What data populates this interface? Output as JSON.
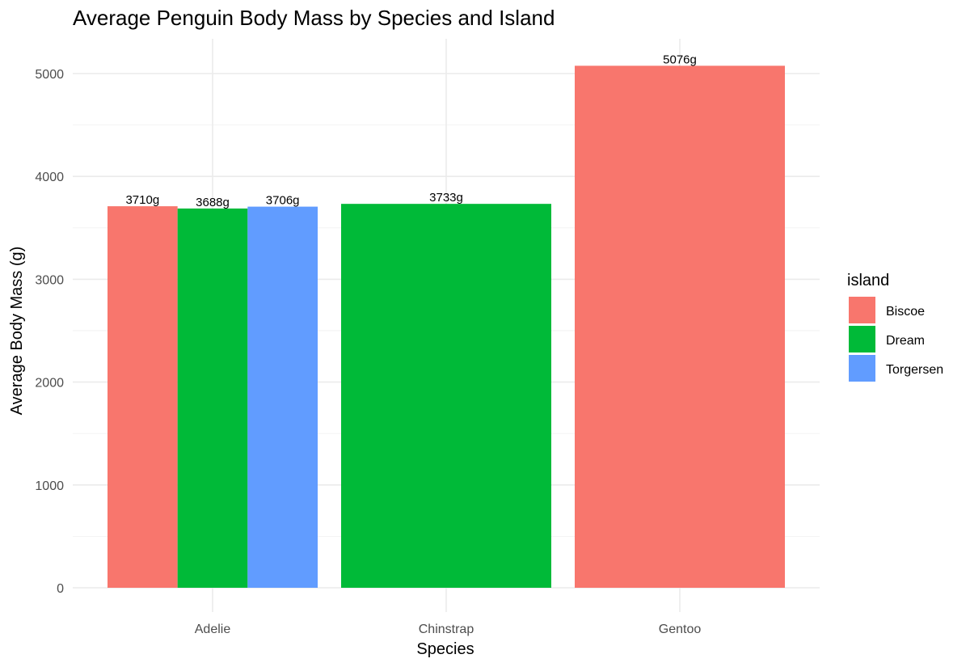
{
  "chart_data": {
    "type": "bar",
    "title": "Average Penguin Body Mass by Species and Island",
    "xlabel": "Species",
    "ylabel": "Average Body Mass (g)",
    "categories": [
      "Adelie",
      "Chinstrap",
      "Gentoo"
    ],
    "ylim": [
      0,
      5200
    ],
    "yticks": [
      0,
      1000,
      2000,
      3000,
      4000,
      5000
    ],
    "ytick_labels": [
      "0",
      "1000",
      "2000",
      "3000",
      "4000",
      "5000"
    ],
    "grid": true,
    "legend": {
      "title": "island",
      "placement": "right",
      "entries": [
        {
          "label": "Biscoe",
          "color": "#F8766D"
        },
        {
          "label": "Dream",
          "color": "#00BA38"
        },
        {
          "label": "Torgersen",
          "color": "#619CFF"
        }
      ]
    },
    "bars": [
      {
        "category": "Adelie",
        "island": "Biscoe",
        "value": 3710,
        "label": "3710g",
        "color": "#F8766D"
      },
      {
        "category": "Adelie",
        "island": "Dream",
        "value": 3688,
        "label": "3688g",
        "color": "#00BA38"
      },
      {
        "category": "Adelie",
        "island": "Torgersen",
        "value": 3706,
        "label": "3706g",
        "color": "#619CFF"
      },
      {
        "category": "Chinstrap",
        "island": "Dream",
        "value": 3733,
        "label": "3733g",
        "color": "#00BA38"
      },
      {
        "category": "Gentoo",
        "island": "Biscoe",
        "value": 5076,
        "label": "5076g",
        "color": "#F8766D"
      }
    ]
  }
}
